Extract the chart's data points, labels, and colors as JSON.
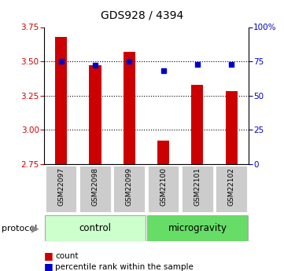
{
  "title": "GDS928 / 4394",
  "samples": [
    "GSM22097",
    "GSM22098",
    "GSM22099",
    "GSM22100",
    "GSM22101",
    "GSM22102"
  ],
  "bar_values": [
    3.68,
    3.47,
    3.57,
    2.92,
    3.33,
    3.28
  ],
  "bar_bottom": 2.75,
  "bar_color": "#cc0000",
  "percentile_values": [
    75,
    72,
    75,
    68,
    73,
    73
  ],
  "percentile_color": "#0000cc",
  "ylim_left": [
    2.75,
    3.75
  ],
  "ylim_right": [
    0,
    100
  ],
  "yticks_left": [
    2.75,
    3.0,
    3.25,
    3.5,
    3.75
  ],
  "yticks_right": [
    0,
    25,
    50,
    75,
    100
  ],
  "ytick_labels_right": [
    "0",
    "25",
    "50",
    "75",
    "100%"
  ],
  "grid_values": [
    3.0,
    3.25,
    3.5
  ],
  "groups": [
    {
      "label": "control",
      "indices": [
        0,
        1,
        2
      ],
      "color": "#ccffcc"
    },
    {
      "label": "microgravity",
      "indices": [
        3,
        4,
        5
      ],
      "color": "#66dd66"
    }
  ],
  "protocol_label": "protocol",
  "legend_count_label": "count",
  "legend_pct_label": "percentile rank within the sample",
  "sample_box_color": "#cccccc",
  "left_yaxis_color": "#cc0000",
  "right_yaxis_color": "#0000cc",
  "bg_color": "#ffffff"
}
